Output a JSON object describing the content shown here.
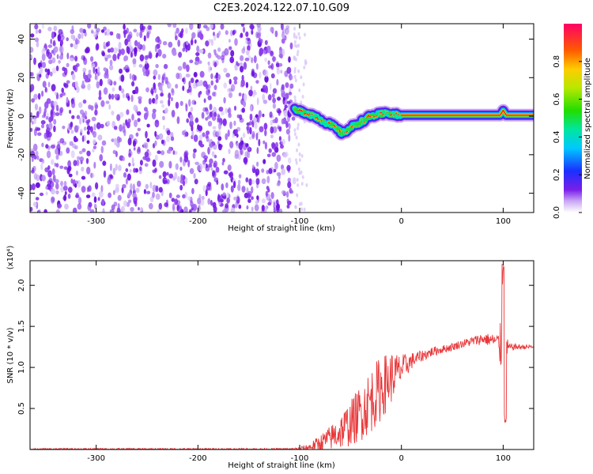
{
  "title": "C2E3.2024.122.07.10.G09",
  "colors": {
    "noise": "#7a1fe8",
    "noise_light": "#c9a8f4",
    "snr_line": "#e8383a",
    "axis": "#000000"
  },
  "chart_data": [
    {
      "type": "heatmap",
      "xlabel": "Height of straight line (km)",
      "ylabel": "Frequency (Hz)",
      "xlim": [
        -365,
        130
      ],
      "ylim": [
        -50,
        48
      ],
      "x_ticks": [
        -300,
        -200,
        -100,
        0,
        100
      ],
      "y_ticks": [
        -40,
        -20,
        0,
        20,
        40
      ],
      "noise_region_x": [
        -365,
        -105
      ],
      "signal_track": {
        "x": [
          -105,
          -95,
          -85,
          -75,
          -65,
          -58,
          -50,
          -40,
          -30,
          -20,
          -12,
          -5,
          0,
          20,
          60,
          97,
          100,
          103,
          130
        ],
        "y": [
          3,
          2,
          0,
          -3,
          -6,
          -9,
          -6,
          -3,
          0,
          1,
          1.5,
          0.5,
          0.5,
          0.5,
          0.5,
          0.5,
          3,
          0.5,
          0.5
        ]
      },
      "colorbar": {
        "label": "Normalized spectral amplitude",
        "range": [
          0,
          1
        ],
        "ticks": [
          0.0,
          0.2,
          0.4,
          0.6,
          0.8
        ]
      }
    },
    {
      "type": "line",
      "xlabel": "Height of straight line (km)",
      "ylabel": "SNR (10 * v/v)",
      "scale_label": "(x10⁴)",
      "xlim": [
        -365,
        130
      ],
      "ylim": [
        0,
        2.3
      ],
      "x_ticks": [
        -300,
        -200,
        -100,
        0,
        100
      ],
      "y_ticks": [
        0.5,
        1.0,
        1.5,
        2.0
      ],
      "envelope": {
        "x": [
          -365,
          -110,
          -100,
          -90,
          -80,
          -70,
          -60,
          -50,
          -40,
          -30,
          -20,
          -10,
          0,
          10,
          20,
          30,
          40,
          50,
          60,
          70,
          80,
          90,
          95,
          100,
          105,
          110,
          120,
          130
        ],
        "mid": [
          0.005,
          0.005,
          0.01,
          0.03,
          0.08,
          0.14,
          0.22,
          0.32,
          0.45,
          0.6,
          0.75,
          0.88,
          0.98,
          1.08,
          1.14,
          1.19,
          1.22,
          1.25,
          1.29,
          1.32,
          1.35,
          1.33,
          1.3,
          1.2,
          1.24,
          1.25,
          1.25,
          1.25
        ],
        "amp": [
          0.01,
          0.01,
          0.02,
          0.05,
          0.1,
          0.15,
          0.22,
          0.28,
          0.35,
          0.4,
          0.4,
          0.32,
          0.18,
          0.1,
          0.07,
          0.06,
          0.05,
          0.05,
          0.05,
          0.06,
          0.07,
          0.08,
          0.12,
          0.5,
          0.05,
          0.04,
          0.03,
          0.03
        ]
      }
    }
  ]
}
